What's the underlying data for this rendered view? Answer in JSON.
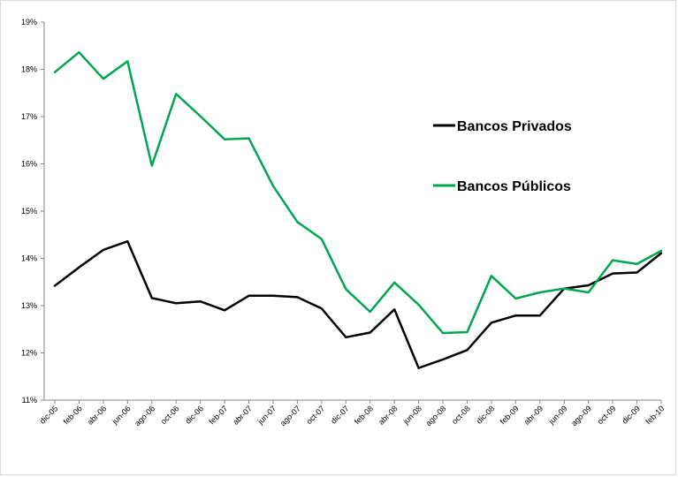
{
  "chart_data": {
    "type": "line",
    "title": "",
    "xlabel": "",
    "ylabel": "",
    "x": [
      "dic-05",
      "feb-06",
      "abr-06",
      "jun-06",
      "ago-06",
      "oct-06",
      "dic-06",
      "feb-07",
      "abr-07",
      "jun-07",
      "ago-07",
      "oct-07",
      "dic-07",
      "feb-08",
      "abr-08",
      "jun-08",
      "ago-08",
      "oct-08",
      "dic-08",
      "feb-09",
      "abr-09",
      "jun-09",
      "ago-09",
      "oct-09",
      "dic-09",
      "feb-10"
    ],
    "ylim": [
      0.11,
      0.19
    ],
    "yticks": [
      "11%",
      "12%",
      "13%",
      "14%",
      "15%",
      "16%",
      "17%",
      "18%",
      "19%"
    ],
    "grid": false,
    "legend_position": "right",
    "series": [
      {
        "name": "Bancos Privados",
        "color": "#000000",
        "values": [
          0.1342,
          0.1381,
          0.1418,
          0.1436,
          0.1316,
          0.1305,
          0.1309,
          0.129,
          0.1321,
          0.1321,
          0.1318,
          0.1294,
          0.1233,
          0.1243,
          0.1292,
          0.1168,
          0.1186,
          0.1206,
          0.1264,
          0.1279,
          0.1279,
          0.1336,
          0.1343,
          0.1368,
          0.137,
          0.1411
        ]
      },
      {
        "name": "Bancos Públicos",
        "color": "#00a64f",
        "values": [
          0.1794,
          0.1836,
          0.178,
          0.1817,
          0.1596,
          0.1748,
          0.1701,
          0.1652,
          0.1654,
          0.1553,
          0.1477,
          0.1441,
          0.1335,
          0.1287,
          0.1349,
          0.1302,
          0.1242,
          0.1244,
          0.1363,
          0.1315,
          0.1328,
          0.1336,
          0.1328,
          0.1396,
          0.1388,
          0.1416
        ]
      }
    ]
  }
}
